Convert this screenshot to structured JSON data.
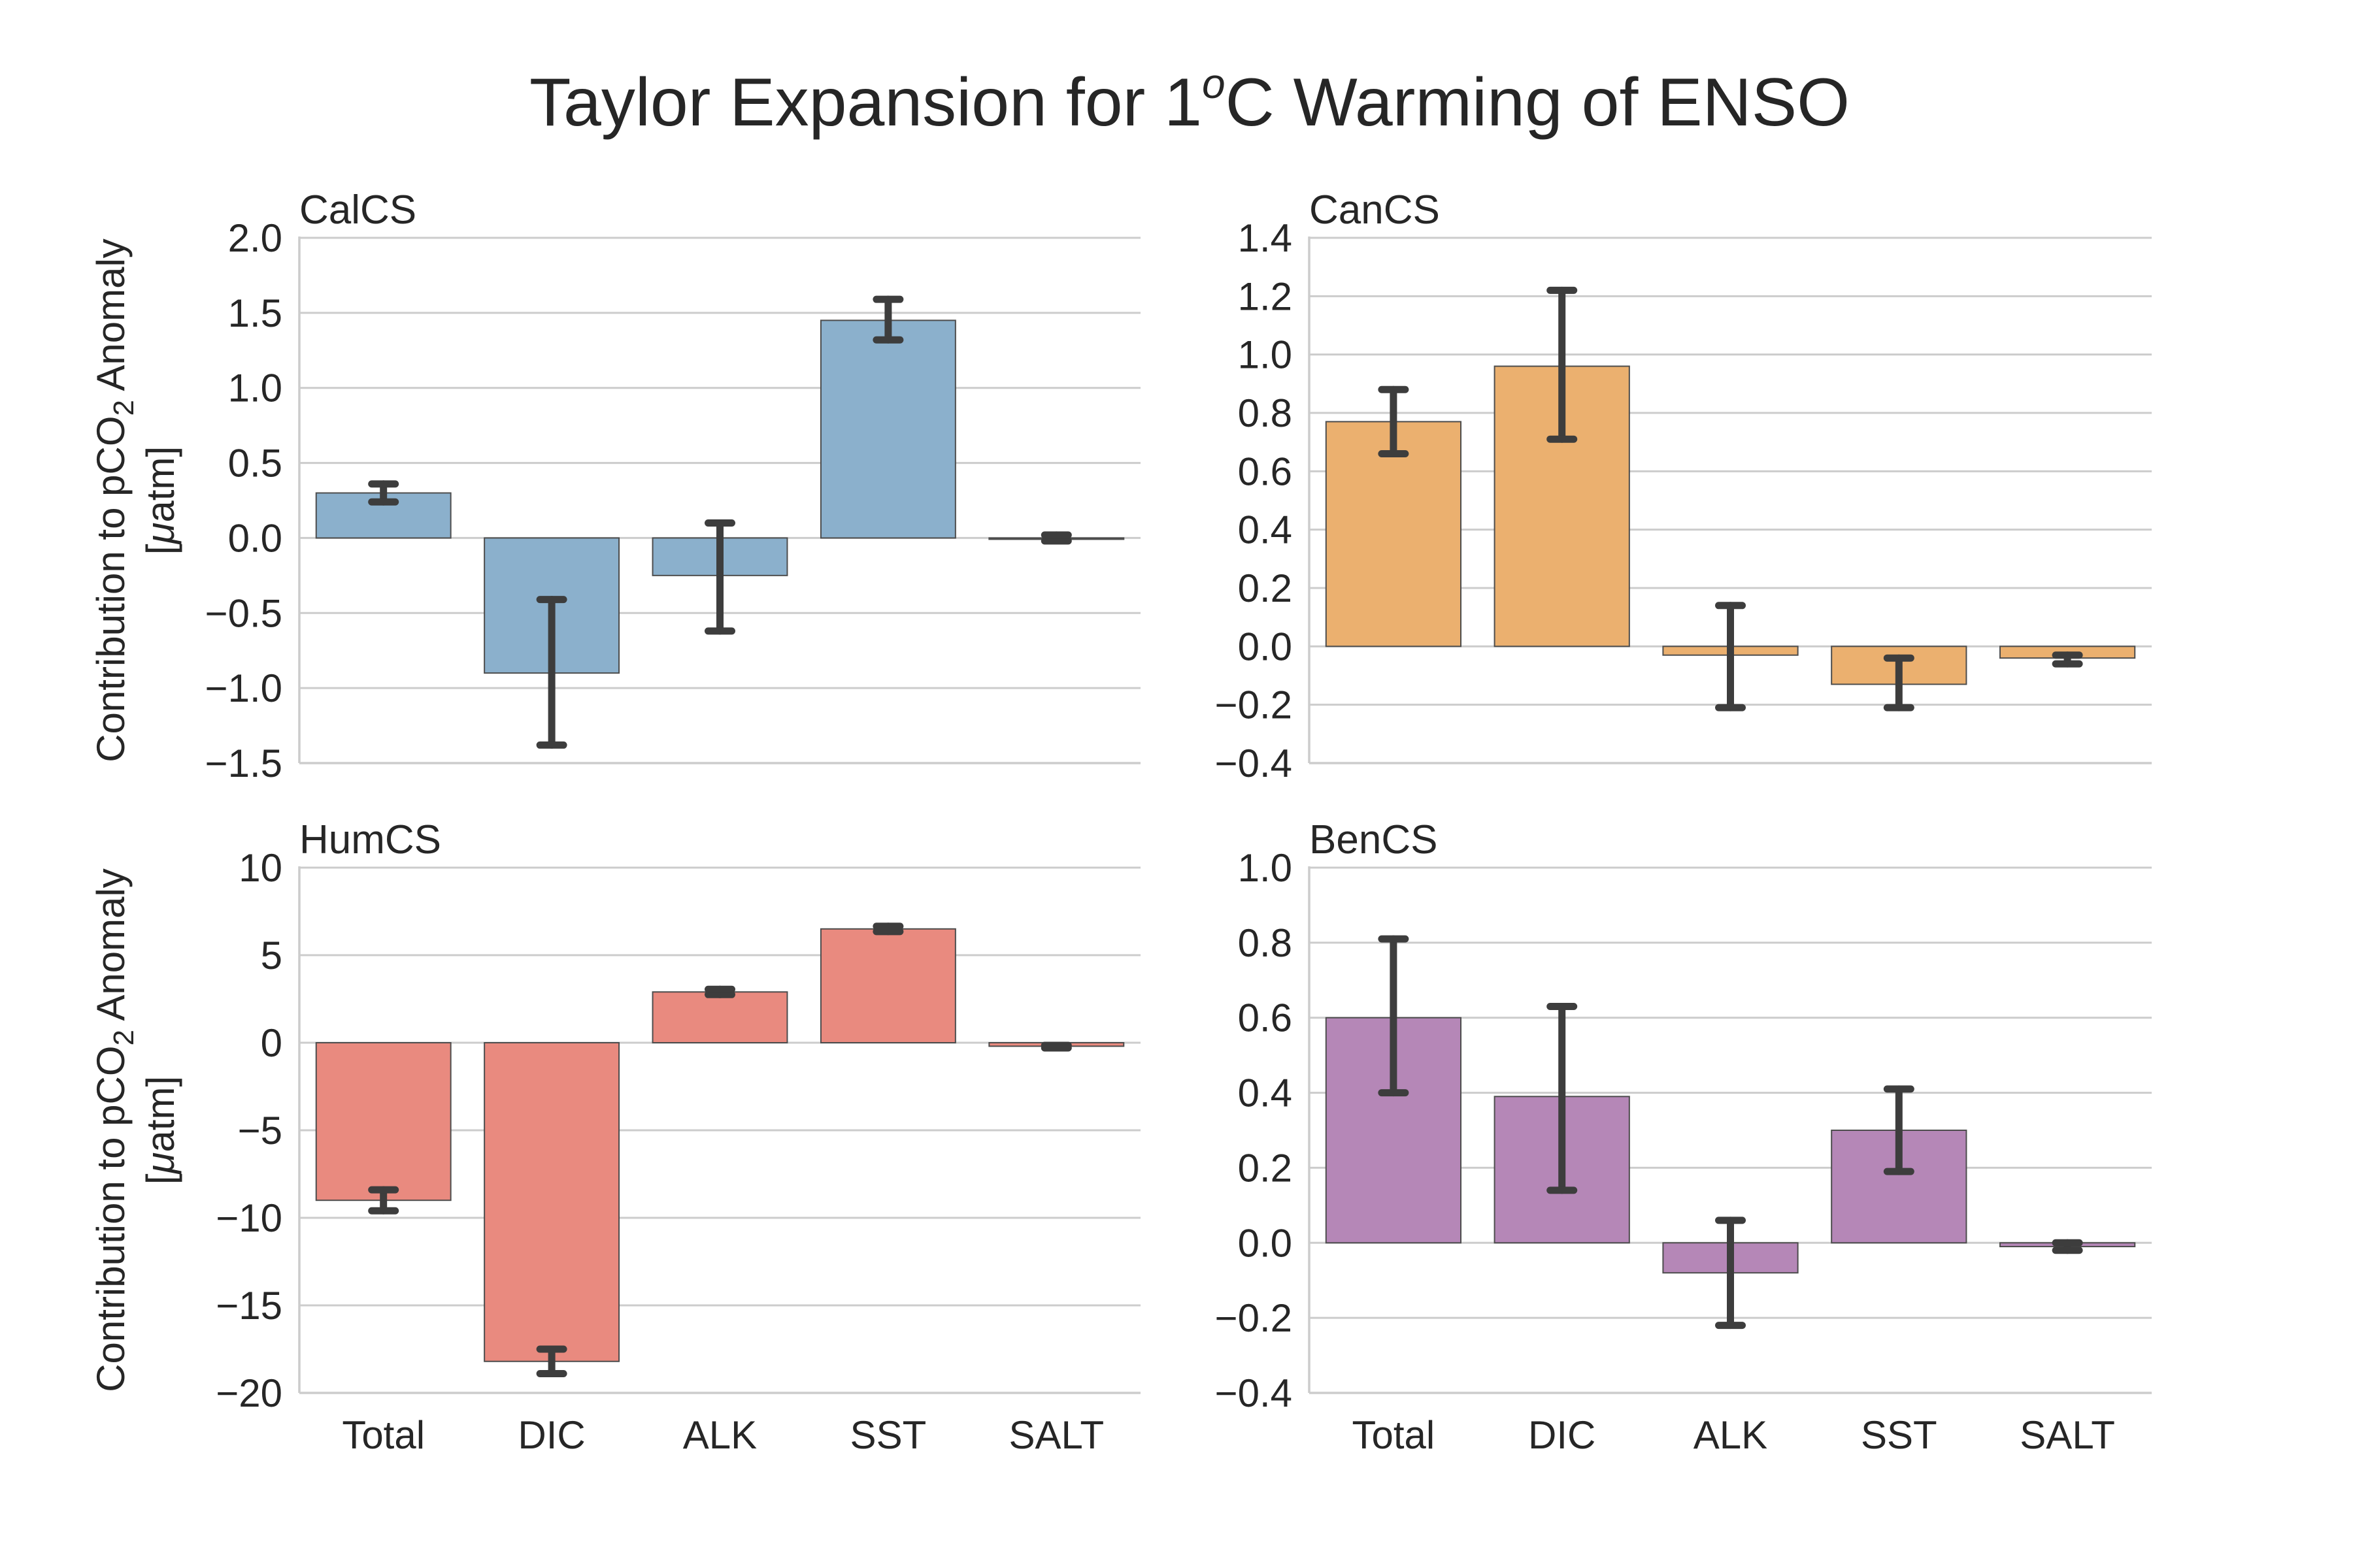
{
  "figure": {
    "title": "Taylor Expansion for 1°C Warming of ENSO",
    "title_parts": {
      "pre": "Taylor Expansion for 1",
      "sup": "o",
      "post": "C Warming of ENSO"
    }
  },
  "ylabel": {
    "line1_pre": "Contribution to pCO",
    "line1_sub": "2",
    "line1_post": " Anomaly",
    "line2_pre": "[",
    "line2_mu": "μ",
    "line2_post": "atm]"
  },
  "chart_data": [
    {
      "type": "bar",
      "title": "CalCS",
      "color": "#8bb0cc",
      "categories": [
        "Total",
        "DIC",
        "ALK",
        "SST",
        "SALT"
      ],
      "values": [
        0.3,
        -0.9,
        -0.25,
        1.45,
        0.0
      ],
      "error_low": [
        0.24,
        -1.38,
        -0.62,
        1.32,
        -0.02
      ],
      "error_high": [
        0.36,
        -0.41,
        0.1,
        1.59,
        0.02
      ],
      "ylim": [
        -1.5,
        2.0
      ],
      "yticks": [
        -1.5,
        -1.0,
        -0.5,
        0.0,
        0.5,
        1.0,
        1.5,
        2.0
      ],
      "ytick_labels": [
        "−1.5",
        "−1.0",
        "−0.5",
        "0.0",
        "0.5",
        "1.0",
        "1.5",
        "2.0"
      ],
      "xlabel": "",
      "grid": true
    },
    {
      "type": "bar",
      "title": "CanCS",
      "color": "#ebb06f",
      "categories": [
        "Total",
        "DIC",
        "ALK",
        "SST",
        "SALT"
      ],
      "values": [
        0.77,
        0.96,
        -0.03,
        -0.13,
        -0.04
      ],
      "error_low": [
        0.66,
        0.71,
        -0.21,
        -0.21,
        -0.06
      ],
      "error_high": [
        0.88,
        1.22,
        0.14,
        -0.04,
        -0.03
      ],
      "ylim": [
        -0.4,
        1.4
      ],
      "yticks": [
        -0.4,
        -0.2,
        0.0,
        0.2,
        0.4,
        0.6,
        0.8,
        1.0,
        1.2,
        1.4
      ],
      "ytick_labels": [
        "−0.4",
        "−0.2",
        "0.0",
        "0.2",
        "0.4",
        "0.6",
        "0.8",
        "1.0",
        "1.2",
        "1.4"
      ],
      "xlabel": "",
      "grid": true
    },
    {
      "type": "bar",
      "title": "HumCS",
      "color": "#e98a7f",
      "categories": [
        "Total",
        "DIC",
        "ALK",
        "SST",
        "SALT"
      ],
      "values": [
        -9.0,
        -18.2,
        2.9,
        6.5,
        -0.2
      ],
      "error_low": [
        -9.6,
        -18.9,
        2.75,
        6.35,
        -0.3
      ],
      "error_high": [
        -8.4,
        -17.5,
        3.05,
        6.65,
        -0.15
      ],
      "ylim": [
        -20,
        10
      ],
      "yticks": [
        -20,
        -15,
        -10,
        -5,
        0,
        5,
        10
      ],
      "ytick_labels": [
        "−20",
        "−15",
        "−10",
        "−5",
        "0",
        "5",
        "10"
      ],
      "xlabel": "",
      "grid": true
    },
    {
      "type": "bar",
      "title": "BenCS",
      "color": "#b587b7",
      "categories": [
        "Total",
        "DIC",
        "ALK",
        "SST",
        "SALT"
      ],
      "values": [
        0.6,
        0.39,
        -0.08,
        0.3,
        -0.01
      ],
      "error_low": [
        0.4,
        0.14,
        -0.22,
        0.19,
        -0.02
      ],
      "error_high": [
        0.81,
        0.63,
        0.06,
        0.41,
        0.0
      ],
      "ylim": [
        -0.4,
        1.0
      ],
      "yticks": [
        -0.4,
        -0.2,
        0.0,
        0.2,
        0.4,
        0.6,
        0.8,
        1.0
      ],
      "ytick_labels": [
        "−0.4",
        "−0.2",
        "0.0",
        "0.2",
        "0.4",
        "0.6",
        "0.8",
        "1.0"
      ],
      "xlabel": "",
      "grid": true
    }
  ]
}
